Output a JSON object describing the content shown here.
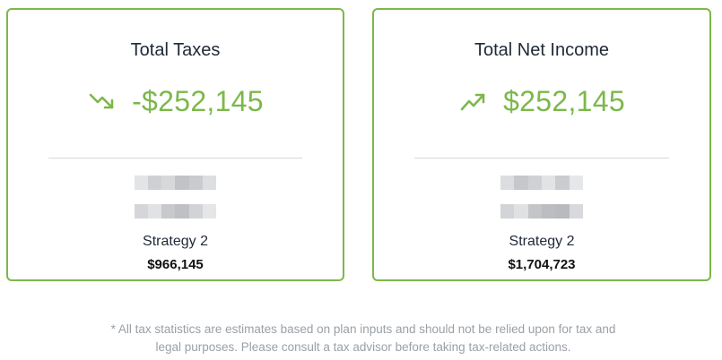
{
  "colors": {
    "accent": "#7cb84a",
    "border": "#7cb84a",
    "title_text": "#1f2937",
    "footnote_text": "#9aa0a6",
    "divider": "#d9d9d9"
  },
  "cards": [
    {
      "title": "Total Taxes",
      "trend_icon": "trend-down-icon",
      "value": "-$252,145",
      "strategy_label": "Strategy 2",
      "strategy_value": "$966,145"
    },
    {
      "title": "Total Net Income",
      "trend_icon": "trend-up-icon",
      "value": "$252,145",
      "strategy_label": "Strategy 2",
      "strategy_value": "$1,704,723"
    }
  ],
  "footnote": {
    "line1": "* All tax statistics are estimates based on plan inputs and should not be relied upon for tax and",
    "line2": "legal purposes. Please consult a tax advisor before taking tax-related actions."
  }
}
